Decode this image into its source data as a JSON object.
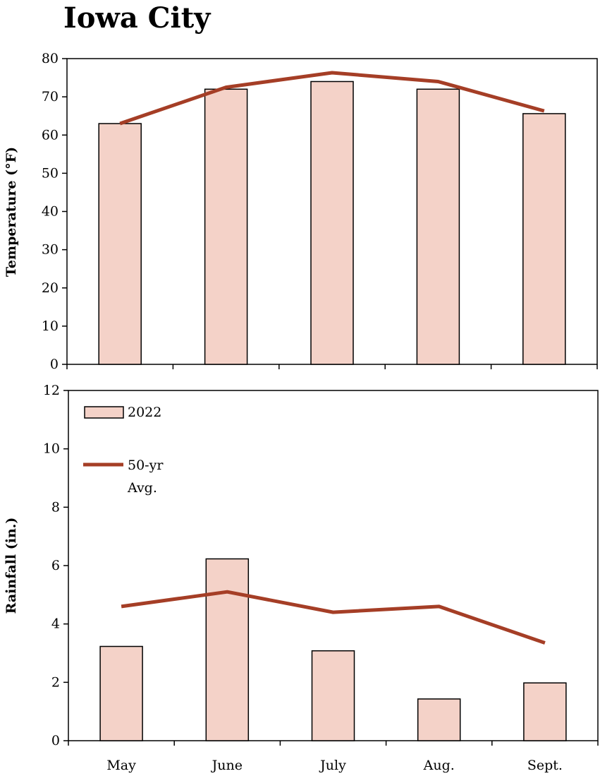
{
  "title": "Iowa City",
  "colors": {
    "bar_fill": "#f4d2c8",
    "bar_stroke": "#000000",
    "line": "#a53e26"
  },
  "legend": {
    "bar_label": "2022",
    "line_label_1": "50-yr",
    "line_label_2": "Avg.",
    "placement": "top-left"
  },
  "chart_data": [
    {
      "type": "bar",
      "categories": [
        "May",
        "June",
        "July",
        "Aug.",
        "Sept."
      ],
      "ylabel": "Temperature  (°F)",
      "ylim": [
        0,
        80
      ],
      "yticks": [
        0,
        10,
        20,
        30,
        40,
        50,
        60,
        70,
        80
      ],
      "series": [
        {
          "name": "2022",
          "type": "bar",
          "values": [
            63,
            72,
            74,
            72,
            65.6
          ]
        },
        {
          "name": "50-yr Avg.",
          "type": "line",
          "values": [
            63,
            72.5,
            76.3,
            74,
            66.3
          ]
        }
      ]
    },
    {
      "type": "bar",
      "categories": [
        "May",
        "June",
        "July",
        "Aug.",
        "Sept."
      ],
      "ylabel": "Rainfall (in.)",
      "ylim": [
        0,
        12
      ],
      "yticks": [
        0,
        2,
        4,
        6,
        8,
        10,
        12
      ],
      "series": [
        {
          "name": "2022",
          "type": "bar",
          "values": [
            3.23,
            6.23,
            3.08,
            1.43,
            1.98
          ]
        },
        {
          "name": "50-yr Avg.",
          "type": "line",
          "values": [
            4.6,
            5.1,
            4.4,
            4.6,
            3.35
          ]
        }
      ]
    }
  ]
}
